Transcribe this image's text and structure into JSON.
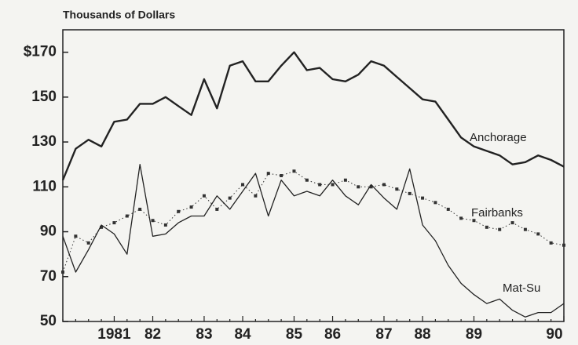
{
  "chart_data": {
    "type": "line",
    "title": "Thousands of Dollars",
    "categories": [
      null,
      null,
      null,
      null,
      "1981",
      null,
      null,
      "82",
      null,
      null,
      null,
      "83",
      null,
      null,
      "84",
      null,
      null,
      null,
      "85",
      null,
      null,
      "86",
      null,
      null,
      null,
      "87",
      null,
      null,
      "88",
      null,
      null,
      null,
      "89",
      null,
      null,
      null,
      null,
      null,
      null,
      "90"
    ],
    "series": [
      {
        "name": "Anchorage",
        "color": "#222222",
        "style": "solid-thick",
        "values": [
          113,
          127,
          131,
          128,
          139,
          140,
          147,
          147,
          150,
          146,
          142,
          158,
          145,
          164,
          166,
          157,
          157,
          164,
          170,
          162,
          163,
          158,
          157,
          160,
          166,
          164,
          159,
          154,
          149,
          148,
          140,
          132,
          128,
          126,
          124,
          120,
          121,
          124,
          122,
          119
        ]
      },
      {
        "name": "Fairbanks",
        "color": "#333333",
        "style": "dotted-markers",
        "values": [
          72,
          88,
          85,
          92,
          94,
          97,
          100,
          95,
          93,
          99,
          101,
          106,
          100,
          105,
          111,
          106,
          116,
          115,
          117,
          113,
          111,
          111,
          113,
          110,
          110,
          111,
          109,
          107,
          105,
          103,
          100,
          96,
          95,
          92,
          91,
          94,
          91,
          89,
          85,
          84
        ]
      },
      {
        "name": "Mat-Su",
        "color": "#222222",
        "style": "solid-thin",
        "values": [
          88,
          72,
          82,
          93,
          89,
          80,
          120,
          88,
          89,
          94,
          97,
          97,
          106,
          100,
          108,
          116,
          97,
          113,
          106,
          108,
          106,
          113,
          106,
          102,
          111,
          105,
          100,
          118,
          93,
          86,
          75,
          67,
          62,
          58,
          60,
          55,
          52,
          54,
          54,
          58
        ]
      }
    ],
    "ylim": [
      50,
      180
    ],
    "yticks": [
      50,
      70,
      90,
      110,
      130,
      150,
      {
        "value": 170,
        "label": "$170"
      }
    ],
    "grid": false
  }
}
